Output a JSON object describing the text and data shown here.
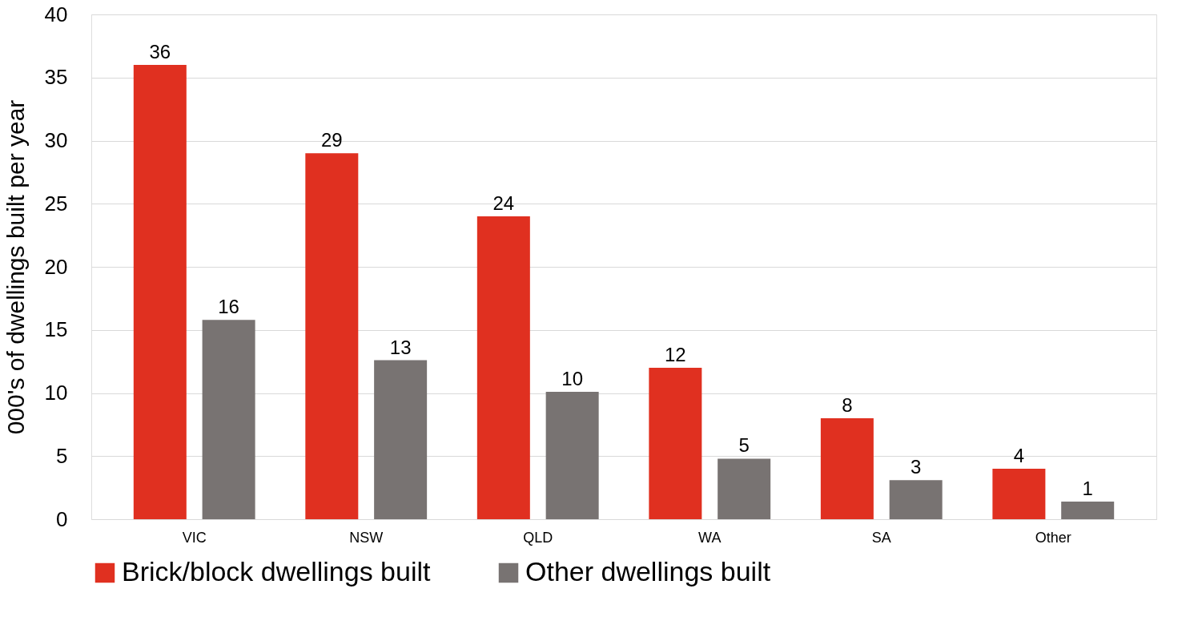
{
  "chart_data": {
    "type": "bar",
    "ylabel": "000's of dwellings built per year",
    "categories": [
      "VIC",
      "NSW",
      "QLD",
      "WA",
      "SA",
      "Other"
    ],
    "series": [
      {
        "name": "Brick/block dwellings built",
        "color": "#e03020",
        "values": [
          36,
          29,
          24,
          12,
          8,
          4
        ],
        "value_labels": [
          "36",
          "29",
          "24",
          "12",
          "8",
          "4"
        ]
      },
      {
        "name": "Other dwellings built",
        "color": "#787372",
        "values": [
          15.8,
          12.6,
          10.1,
          4.8,
          3.1,
          1.4
        ],
        "value_labels": [
          "16",
          "13",
          "10",
          "5",
          "3",
          "1"
        ]
      }
    ],
    "ylim": [
      0,
      40
    ],
    "yticks": [
      0,
      5,
      10,
      15,
      20,
      25,
      30,
      35,
      40
    ],
    "grid": "y",
    "legend": "bottom"
  }
}
